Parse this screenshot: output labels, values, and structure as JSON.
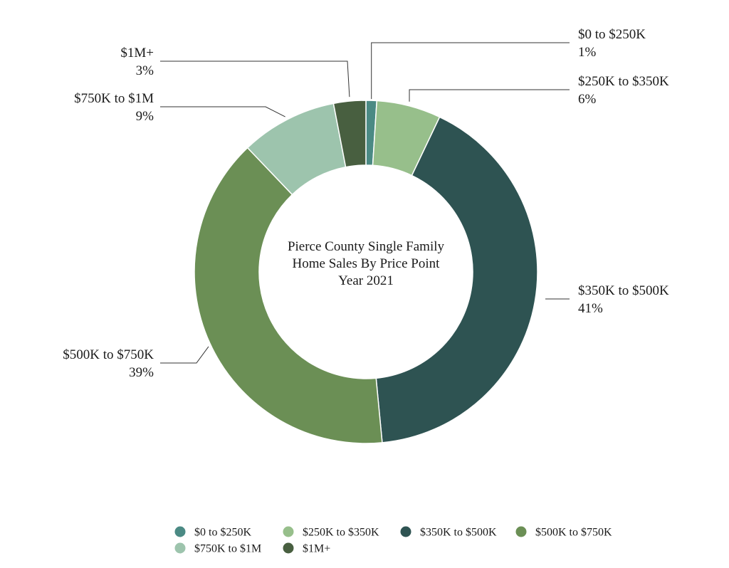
{
  "chart_data": {
    "type": "pie",
    "title": "Pierce County Single Family\nHome Sales By Price Point\nYear 2021",
    "categories": [
      "$0 to $250K",
      "$250K to $350K",
      "$350K to $500K",
      "$500K to $750K",
      "$750K to $1M",
      "$1M+"
    ],
    "values": [
      1,
      6,
      41,
      39,
      9,
      3
    ],
    "value_labels": [
      "1%",
      "6%",
      "41%",
      "39%",
      "9%",
      "3%"
    ],
    "colors": [
      "#4b8a84",
      "#97bf8b",
      "#2e5352",
      "#6b8f55",
      "#9dc4ad",
      "#485f40"
    ],
    "legend_position": "bottom"
  }
}
